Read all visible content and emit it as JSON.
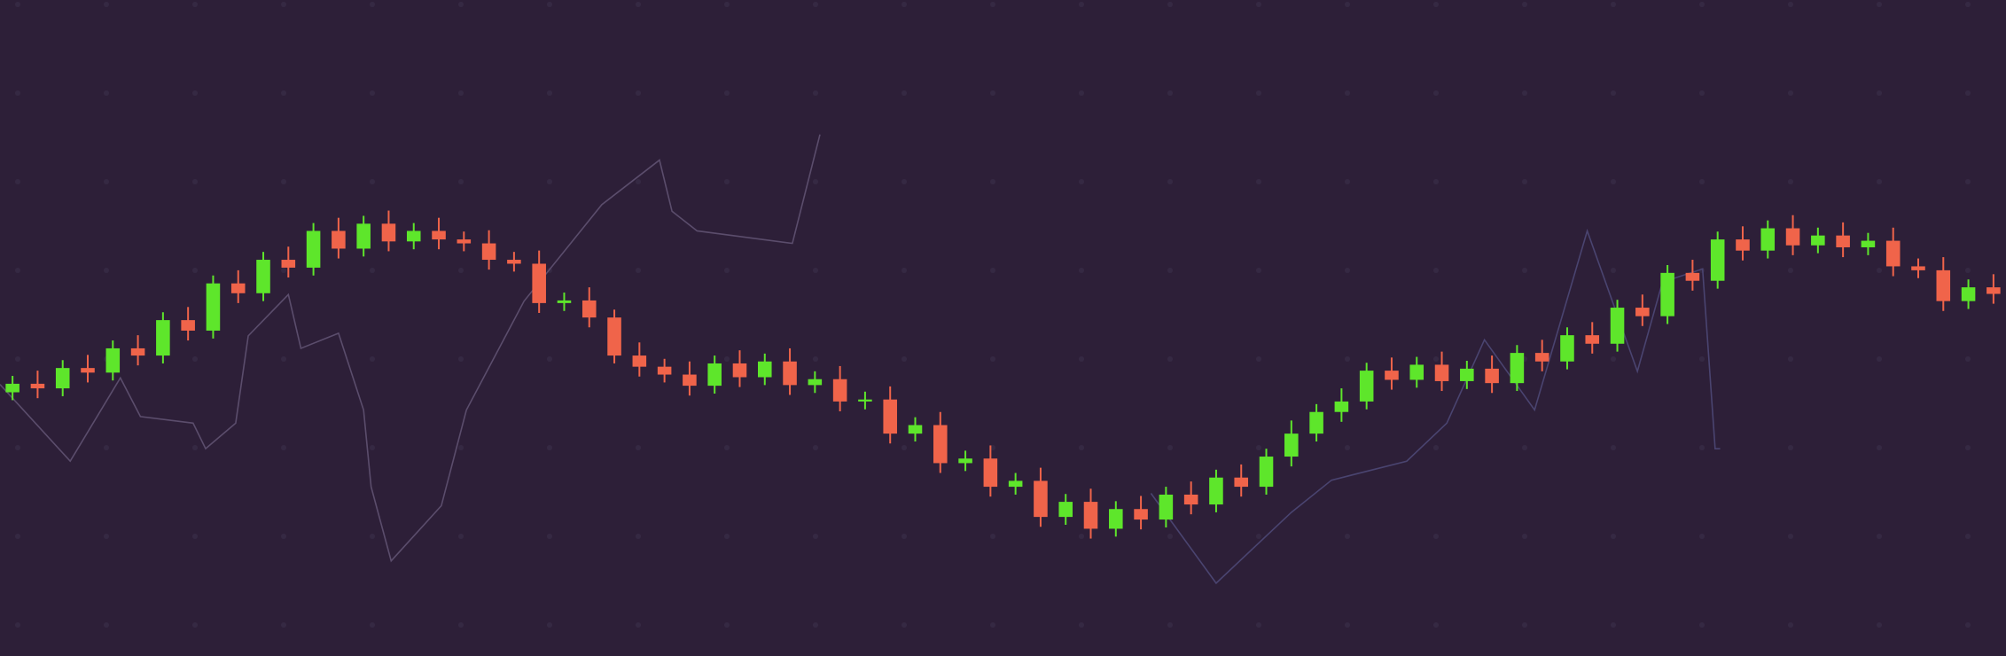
{
  "chart_data": {
    "type": "candlestick",
    "up_color": "#5ee62b",
    "down_color": "#f0644a",
    "xlim": [
      -0.5,
      79.5
    ],
    "ylim": [
      0,
      100
    ],
    "open": [
      40.2,
      41.5,
      40.8,
      43.9,
      43.2,
      46.9,
      45.8,
      51.2,
      49.6,
      56.8,
      55.3,
      60.4,
      59.2,
      64.8,
      62.1,
      65.9,
      63.2,
      64.8,
      63.5,
      62.9,
      60.4,
      59.8,
      53.8,
      54.2,
      51.6,
      45.8,
      44.1,
      42.9,
      41.2,
      44.6,
      42.5,
      44.9,
      41.3,
      42.2,
      38.8,
      39.1,
      33.9,
      35.2,
      29.4,
      30.1,
      25.8,
      26.7,
      21.2,
      23.5,
      19.4,
      22.4,
      20.8,
      24.6,
      23.1,
      27.2,
      25.8,
      30.4,
      33.9,
      37.2,
      38.8,
      43.5,
      42.1,
      44.4,
      41.9,
      43.8,
      41.6,
      46.2,
      44.9,
      48.9,
      47.6,
      53.1,
      51.8,
      58.4,
      57.2,
      63.5,
      61.8,
      65.2,
      62.6,
      64.1,
      62.3,
      63.3,
      59.4,
      58.8,
      54.1,
      56.2
    ],
    "high": [
      42.7,
      43.5,
      45.1,
      45.9,
      48.1,
      48.9,
      52.4,
      53.2,
      58,
      58.8,
      61.6,
      62.4,
      66,
      66.8,
      67.1,
      67.9,
      66,
      66.8,
      64.7,
      64.9,
      61.6,
      61.8,
      55.4,
      56.2,
      52.8,
      47.8,
      45.3,
      44.9,
      45.8,
      46.6,
      46.1,
      46.9,
      43.4,
      44.2,
      40.3,
      41.1,
      36.4,
      37.2,
      31.3,
      32.1,
      27.9,
      28.7,
      24.7,
      25.5,
      23.6,
      24.4,
      25.8,
      26.6,
      28.4,
      29.2,
      31.6,
      35.9,
      38.4,
      40.8,
      44.7,
      45.5,
      45.6,
      46.4,
      45,
      45.8,
      47.4,
      48.2,
      50.1,
      50.9,
      54.3,
      55.1,
      59.6,
      60.4,
      64.7,
      65.5,
      66.4,
      67.2,
      65.3,
      66.1,
      64.5,
      65.3,
      60.6,
      60.8,
      57.4,
      58.2
    ],
    "low": [
      39,
      39.3,
      39.6,
      41.7,
      42,
      44.3,
      44.6,
      48.1,
      48.4,
      53.8,
      54.1,
      57.7,
      58,
      60.6,
      60.9,
      61.7,
      62,
      62,
      61.7,
      58.9,
      58.6,
      52.3,
      52.6,
      50.1,
      44.6,
      42.6,
      41.7,
      39.7,
      40,
      41,
      41.3,
      39.8,
      40.1,
      37.3,
      37.6,
      32.4,
      32.7,
      27.9,
      28.2,
      24.3,
      24.6,
      19.7,
      20,
      17.9,
      18.2,
      19.3,
      19.6,
      21.6,
      21.9,
      24.3,
      24.6,
      28.9,
      32.7,
      35.7,
      37.6,
      40.6,
      40.9,
      40.4,
      40.7,
      40.1,
      40.4,
      43.4,
      43.7,
      46.1,
      46.4,
      50.3,
      50.6,
      55.7,
      56,
      60.3,
      60.6,
      61.1,
      61.4,
      60.8,
      61.1,
      57.9,
      57.6,
      52.6,
      52.9,
      53.7
    ],
    "close": [
      41.5,
      40.8,
      43.9,
      43.2,
      46.9,
      45.8,
      51.2,
      49.6,
      56.8,
      55.3,
      60.4,
      59.2,
      64.8,
      62.1,
      65.9,
      63.2,
      64.8,
      63.5,
      62.9,
      60.4,
      59.8,
      53.8,
      54.2,
      51.6,
      45.8,
      44.1,
      42.9,
      41.2,
      44.6,
      42.5,
      44.9,
      41.3,
      42.2,
      38.8,
      39.1,
      33.9,
      35.2,
      29.4,
      30.1,
      25.8,
      26.7,
      21.2,
      23.5,
      19.4,
      22.4,
      20.8,
      24.6,
      23.1,
      27.2,
      25.8,
      30.4,
      33.9,
      37.2,
      38.8,
      43.5,
      42.1,
      44.4,
      41.9,
      43.8,
      41.6,
      46.2,
      44.9,
      48.9,
      47.6,
      53.1,
      51.8,
      58.4,
      57.2,
      63.5,
      61.8,
      65.2,
      62.6,
      64.1,
      62.3,
      63.3,
      59.4,
      58.8,
      54.1,
      56.2,
      55.2
    ],
    "lines": [
      {
        "color": "#5b4d6c",
        "x": [
          -0.5,
          2.3,
          4.3,
          5.1,
          7.2,
          7.7,
          8.9,
          9.4,
          11,
          11.5,
          13,
          14,
          14.3,
          15.1,
          17.1,
          18.1,
          20.4,
          23.5,
          25.8,
          26.3,
          27.3,
          31.1,
          32.2
        ],
        "values": [
          41.4,
          29.7,
          42.4,
          36.5,
          35.5,
          31.6,
          35.5,
          48.8,
          55.1,
          46.9,
          49.2,
          37.5,
          25.8,
          14.5,
          22.9,
          37.5,
          54.1,
          68.8,
          75.6,
          67.8,
          64.8,
          62.9,
          79.5
        ]
      },
      {
        "color": "#4a4470",
        "x": [
          45.4,
          48,
          51,
          52.6,
          55.6,
          57.2,
          58.7,
          60.7,
          62.8,
          64.8,
          65.8,
          67.4,
          67.9,
          68.1
        ],
        "values": [
          24.8,
          11.1,
          21.9,
          26.8,
          29.7,
          35.5,
          48.2,
          37.5,
          64.8,
          43.4,
          57,
          59,
          31.6,
          31.6
        ]
      }
    ]
  }
}
